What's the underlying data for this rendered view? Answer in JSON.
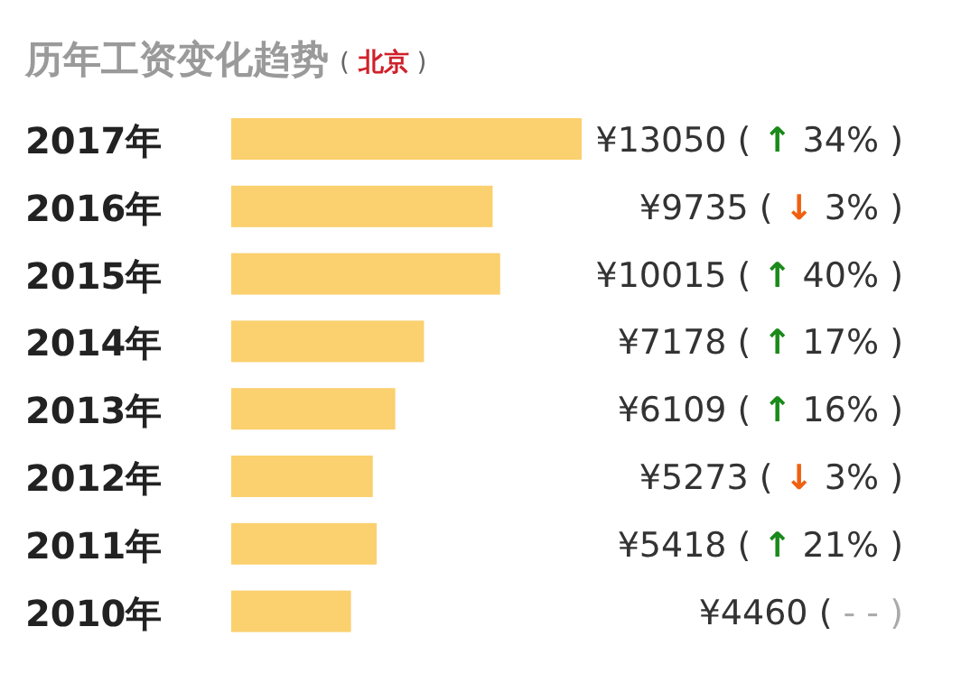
{
  "chart_data": {
    "type": "bar",
    "orientation": "horizontal",
    "title": "历年工资变化趋势",
    "subtitle": "( 北京 )",
    "categories": [
      "2017年",
      "2016年",
      "2015年",
      "2014年",
      "2013年",
      "2012年",
      "2011年",
      "2010年"
    ],
    "values": [
      13050,
      9735,
      10015,
      7178,
      6109,
      5273,
      5418,
      4460
    ],
    "value_labels": [
      "¥13050 ( ↑ 34% )",
      "¥9735 ( ↓ 3% )",
      "¥10015 ( ↑ 40% )",
      "¥7178 ( ↑ 17% )",
      "¥6109 ( ↑ 16% )",
      "¥5273 ( ↓ 3% )",
      "¥5418 ( ↑ 21% )",
      "¥4460 ( - - )"
    ],
    "color": "#fbd06e"
  }
}
